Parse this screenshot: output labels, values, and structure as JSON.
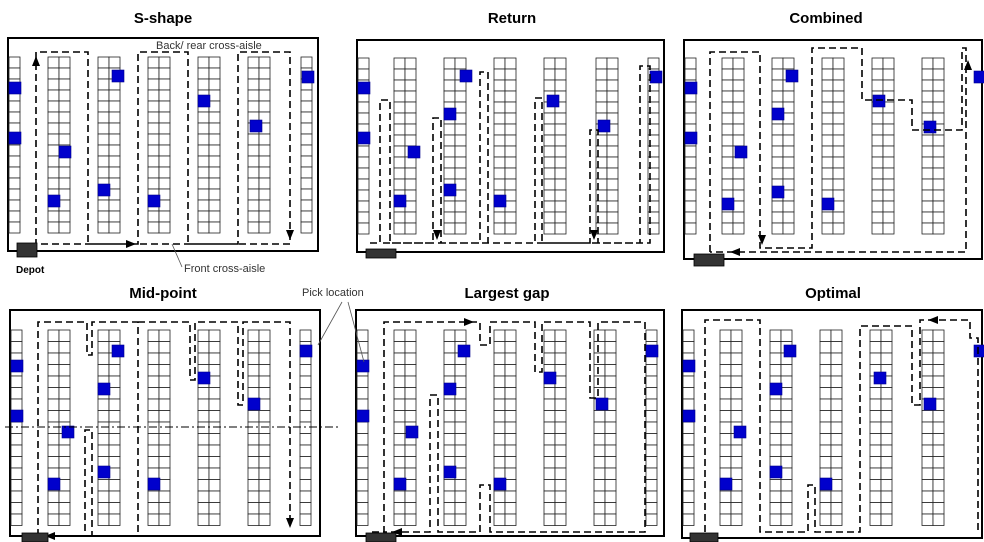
{
  "panels": [
    {
      "id": "s-shape",
      "title": "S-shape"
    },
    {
      "id": "return",
      "title": "Return"
    },
    {
      "id": "combined",
      "title": "Combined"
    },
    {
      "id": "mid-point",
      "title": "Mid-point"
    },
    {
      "id": "largest-gap",
      "title": "Largest gap"
    },
    {
      "id": "optimal",
      "title": "Optimal"
    }
  ],
  "annotations": {
    "back_aisle": "Back/ rear cross-aisle",
    "front_aisle": "Front cross-aisle",
    "depot": "Depot",
    "pick_location": "Pick location"
  },
  "colors": {
    "pick": "#0000cc",
    "frame": "#000000",
    "route": "#000000"
  }
}
